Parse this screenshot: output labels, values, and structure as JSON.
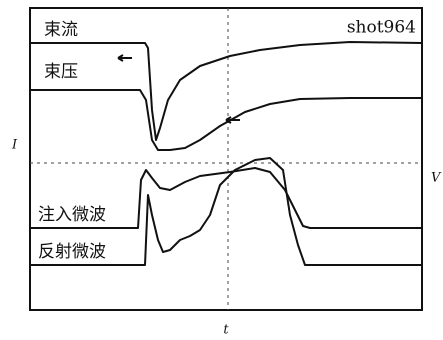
{
  "figure": {
    "shot": "shot964",
    "traces": [
      "束流",
      "束压",
      "注入微波",
      "反射微波"
    ],
    "axis_left": "I",
    "axis_right": "V",
    "axis_bottom": "t"
  }
}
